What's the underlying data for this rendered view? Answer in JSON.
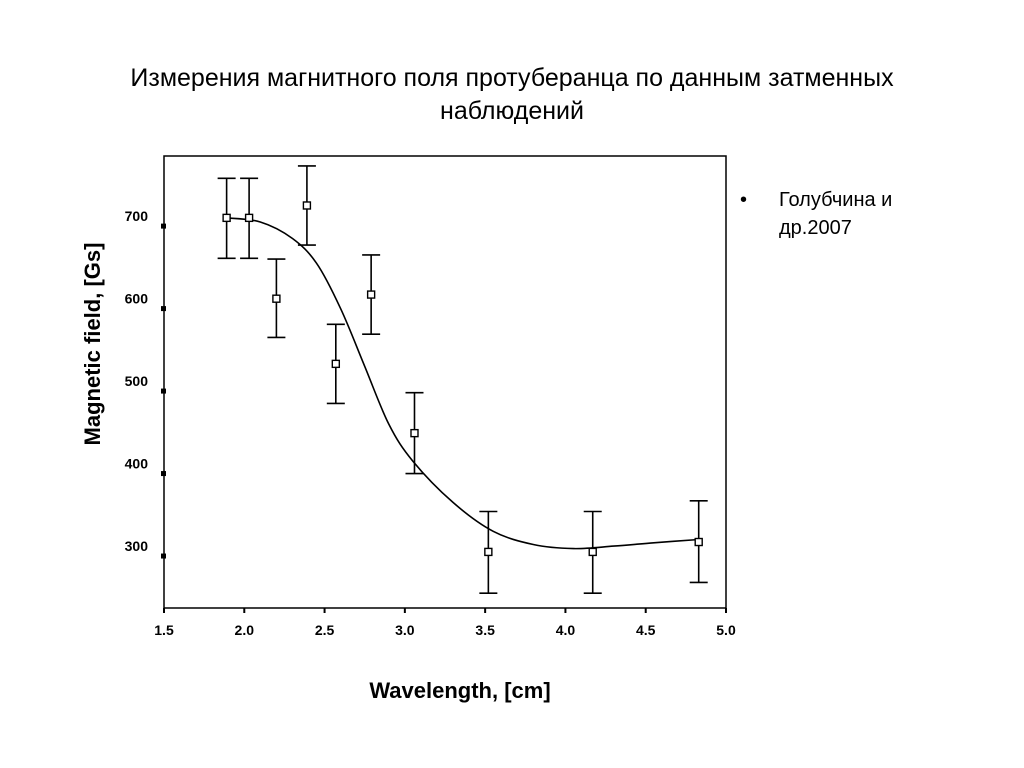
{
  "slide": {
    "title_line1": "Измерения магнитного поля протуберанца по данным затменных",
    "title_line2": "наблюдений",
    "bullet_symbol": "•",
    "bullet_text": "Голубчина и др.2007"
  },
  "chart_data": {
    "type": "scatter",
    "title": "",
    "xlabel": "Wavelength, [cm]",
    "ylabel": "Magnetic field, [Gs]",
    "xlim": [
      1.5,
      5.0
    ],
    "ylim": [
      237,
      785
    ],
    "xticks": [
      1.5,
      2.0,
      2.5,
      3.0,
      3.5,
      4.0,
      4.5,
      5.0
    ],
    "xtick_labels": [
      "1.5",
      "2.0",
      "2.5",
      "3.0",
      "3.5",
      "4.0",
      "4.5",
      "5.0"
    ],
    "yticks": [
      300,
      400,
      500,
      600,
      700
    ],
    "ytick_labels": [
      "300",
      "400",
      "500",
      "600",
      "700"
    ],
    "grid": false,
    "series": [
      {
        "type": "scatter-errorbar",
        "marker": "open-square",
        "color": "#000000",
        "x": [
          1.89,
          2.03,
          2.2,
          2.39,
          2.57,
          2.79,
          3.06,
          3.52,
          4.17,
          4.83
        ],
        "y": [
          710,
          710,
          612,
          725,
          533,
          617,
          449,
          305,
          305,
          317
        ],
        "yerr_low": [
          661,
          661,
          565,
          677,
          485,
          569,
          400,
          255,
          255,
          268
        ],
        "yerr_high": [
          758,
          758,
          660,
          773,
          581,
          665,
          498,
          354,
          354,
          367
        ]
      },
      {
        "type": "line",
        "color": "#000000",
        "x": [
          1.89,
          2.1,
          2.3,
          2.45,
          2.6,
          2.75,
          2.9,
          3.05,
          3.3,
          3.55,
          3.8,
          4.05,
          4.3,
          4.55,
          4.83
        ],
        "y": [
          710,
          705,
          685,
          655,
          600,
          530,
          460,
          415,
          365,
          330,
          314,
          309,
          312,
          316,
          320
        ]
      }
    ]
  }
}
